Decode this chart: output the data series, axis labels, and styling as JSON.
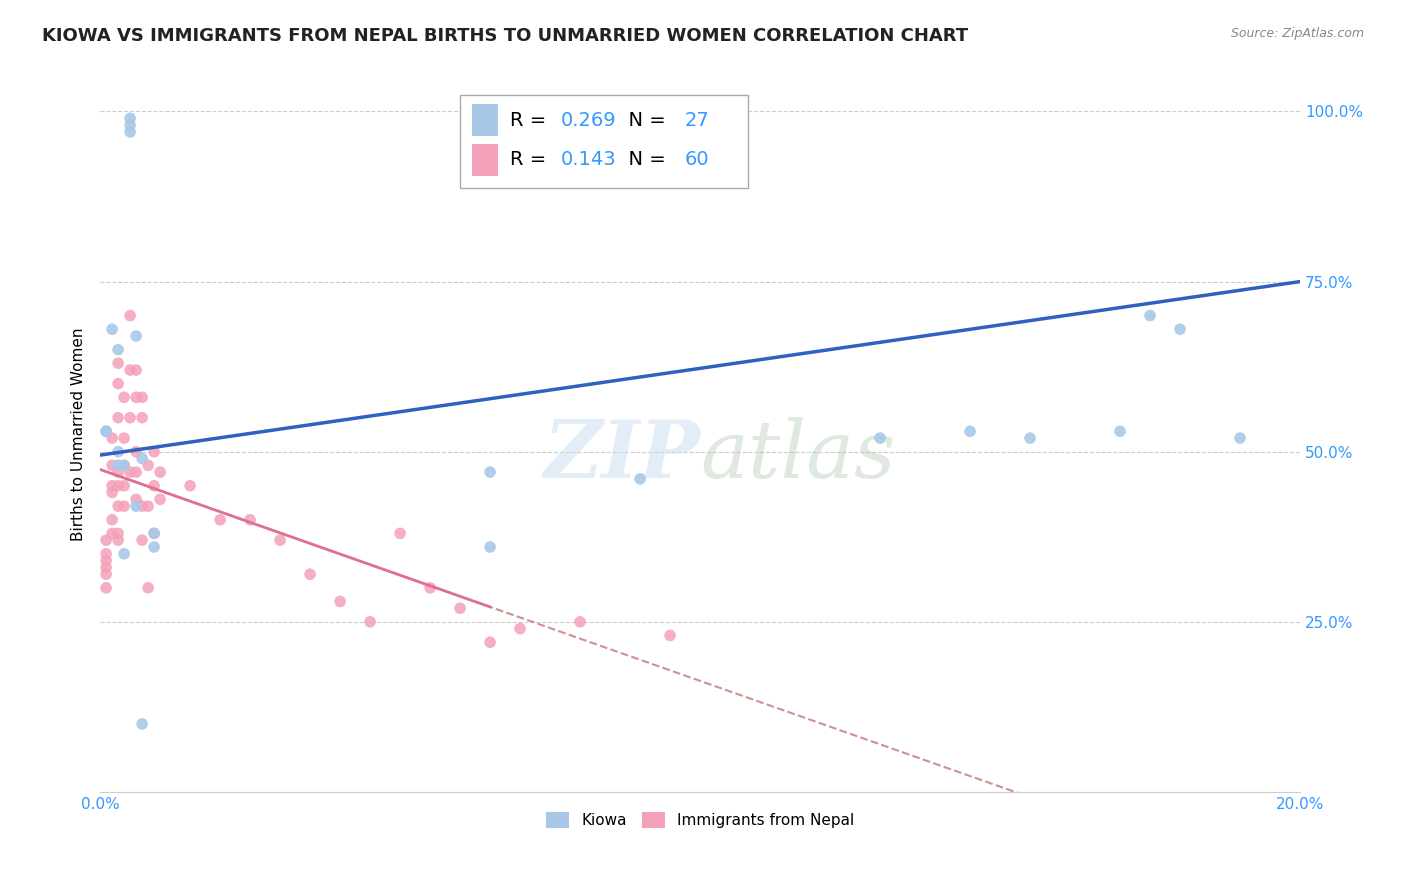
{
  "title": "KIOWA VS IMMIGRANTS FROM NEPAL BIRTHS TO UNMARRIED WOMEN CORRELATION CHART",
  "source": "Source: ZipAtlas.com",
  "ylabel": "Births to Unmarried Women",
  "xlim": [
    0.0,
    0.2
  ],
  "ylim": [
    0.0,
    1.05
  ],
  "xticks": [
    0.0,
    0.04,
    0.08,
    0.12,
    0.16,
    0.2
  ],
  "yticks": [
    0.0,
    0.25,
    0.5,
    0.75,
    1.0
  ],
  "kiowa_R": 0.269,
  "kiowa_N": 27,
  "nepal_R": 0.143,
  "nepal_N": 60,
  "kiowa_color": "#a8c8e8",
  "nepal_color": "#f4a0b8",
  "trend_blue": "#3060c0",
  "trend_pink": "#e07090",
  "trend_pink_dash": "#d09090",
  "background": "#ffffff",
  "grid_color": "#cccccc",
  "label_color": "#3399ff",
  "kiowa_x": [
    0.001,
    0.001,
    0.002,
    0.003,
    0.003,
    0.003,
    0.004,
    0.004,
    0.005,
    0.005,
    0.005,
    0.006,
    0.006,
    0.007,
    0.007,
    0.009,
    0.009,
    0.065,
    0.065,
    0.09,
    0.13,
    0.145,
    0.155,
    0.17,
    0.175,
    0.18,
    0.19
  ],
  "kiowa_y": [
    0.53,
    0.53,
    0.68,
    0.65,
    0.5,
    0.48,
    0.48,
    0.35,
    0.99,
    0.98,
    0.97,
    0.67,
    0.42,
    0.49,
    0.1,
    0.38,
    0.36,
    0.47,
    0.36,
    0.46,
    0.52,
    0.53,
    0.52,
    0.53,
    0.7,
    0.68,
    0.52
  ],
  "nepal_x": [
    0.001,
    0.001,
    0.001,
    0.001,
    0.001,
    0.001,
    0.002,
    0.002,
    0.002,
    0.002,
    0.002,
    0.002,
    0.003,
    0.003,
    0.003,
    0.003,
    0.003,
    0.003,
    0.003,
    0.003,
    0.004,
    0.004,
    0.004,
    0.004,
    0.004,
    0.005,
    0.005,
    0.005,
    0.005,
    0.006,
    0.006,
    0.006,
    0.006,
    0.006,
    0.007,
    0.007,
    0.007,
    0.007,
    0.008,
    0.008,
    0.008,
    0.009,
    0.009,
    0.009,
    0.01,
    0.01,
    0.015,
    0.02,
    0.025,
    0.03,
    0.035,
    0.04,
    0.045,
    0.05,
    0.055,
    0.06,
    0.065,
    0.07,
    0.08,
    0.095
  ],
  "nepal_y": [
    0.37,
    0.35,
    0.34,
    0.33,
    0.32,
    0.3,
    0.52,
    0.48,
    0.45,
    0.44,
    0.4,
    0.38,
    0.63,
    0.6,
    0.55,
    0.47,
    0.45,
    0.42,
    0.38,
    0.37,
    0.58,
    0.52,
    0.48,
    0.45,
    0.42,
    0.7,
    0.62,
    0.55,
    0.47,
    0.62,
    0.58,
    0.5,
    0.47,
    0.43,
    0.58,
    0.55,
    0.42,
    0.37,
    0.48,
    0.42,
    0.3,
    0.5,
    0.45,
    0.38,
    0.47,
    0.43,
    0.45,
    0.4,
    0.4,
    0.37,
    0.32,
    0.28,
    0.25,
    0.38,
    0.3,
    0.27,
    0.22,
    0.24,
    0.25,
    0.23
  ],
  "marker_size": 70,
  "title_fontsize": 13,
  "axis_label_fontsize": 11,
  "tick_fontsize": 11,
  "legend_fontsize": 14
}
